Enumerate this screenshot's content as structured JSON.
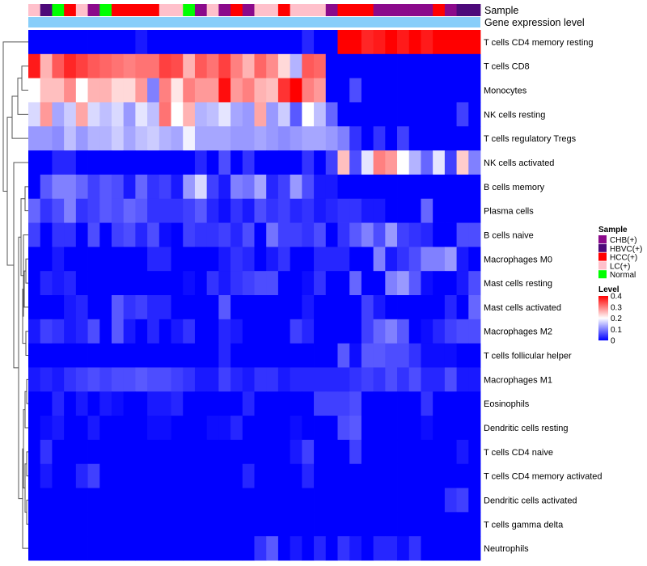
{
  "chart_data": {
    "type": "heatmap",
    "title": "",
    "annotation_tracks": [
      "Sample",
      "Gene expression level"
    ],
    "rows": [
      "T cells CD4 memory resting",
      "T cells CD8",
      "Monocytes",
      "NK cells resting",
      "T cells regulatory  Tregs",
      "NK cells activated",
      "B cells memory",
      "Plasma cells",
      "B cells naive",
      "Macrophages M0",
      "Mast cells resting",
      "Mast cells activated",
      "Macrophages M2",
      "T cells follicular helper",
      "Macrophages M1",
      "Eosinophils",
      "Dendritic cells resting",
      "T cells CD4 naive",
      "T cells CD4 memory activated",
      "Dendritic cells activated",
      "T cells gamma delta",
      "Neutrophils"
    ],
    "samples": [
      "LC(+)",
      "HBVC(+)",
      "Normal",
      "HCC(+)",
      "LC(+)",
      "CHB(+)",
      "Normal",
      "HCC(+)",
      "HCC(+)",
      "HCC(+)",
      "HCC(+)",
      "LC(+)",
      "LC(+)",
      "Normal",
      "CHB(+)",
      "LC(+)",
      "CHB(+)",
      "HCC(+)",
      "CHB(+)",
      "LC(+)",
      "LC(+)",
      "HCC(+)",
      "LC(+)",
      "LC(+)",
      "LC(+)",
      "CHB(+)",
      "HCC(+)",
      "HCC(+)",
      "HCC(+)",
      "CHB(+)",
      "CHB(+)",
      "CHB(+)",
      "CHB(+)",
      "CHB(+)",
      "HCC(+)",
      "CHB(+)",
      "HBVC(+)",
      "HBVC(+)"
    ],
    "values": [
      [
        0,
        0,
        0,
        0,
        0,
        0,
        0,
        0,
        0,
        0.02,
        0,
        0,
        0,
        0,
        0,
        0,
        0,
        0,
        0,
        0,
        0,
        0,
        0,
        0.03,
        0,
        0,
        0.4,
        0.4,
        0.37,
        0.38,
        0.4,
        0.38,
        0.4,
        0.38,
        0.4,
        0.4,
        0.4,
        0.4
      ],
      [
        0.38,
        0.26,
        0.33,
        0.37,
        0.35,
        0.33,
        0.32,
        0.31,
        0.3,
        0.31,
        0.31,
        0.35,
        0.34,
        0.26,
        0.33,
        0.31,
        0.35,
        0.3,
        0.26,
        0.32,
        0.29,
        0.23,
        0.14,
        0.33,
        0.32,
        0,
        0,
        0,
        0,
        0,
        0,
        0,
        0,
        0,
        0,
        0,
        0,
        0
      ],
      [
        0.2,
        0.25,
        0.25,
        0.29,
        0.2,
        0.26,
        0.26,
        0.23,
        0.23,
        0.28,
        0.1,
        0.3,
        0.22,
        0.3,
        0.28,
        0.28,
        0.39,
        0.28,
        0.3,
        0.26,
        0.25,
        0.36,
        0.4,
        0.3,
        0.28,
        0,
        0,
        0.06,
        0,
        0,
        0,
        0,
        0,
        0,
        0,
        0,
        0,
        0
      ],
      [
        0.17,
        0.28,
        0.13,
        0.16,
        0.27,
        0.17,
        0.15,
        0.17,
        0.12,
        0.18,
        0.15,
        0.31,
        0.2,
        0.26,
        0.14,
        0.15,
        0.18,
        0.13,
        0.12,
        0.27,
        0.12,
        0.16,
        0.07,
        0.2,
        0.15,
        0.08,
        0,
        0,
        0,
        0,
        0,
        0,
        0,
        0,
        0,
        0,
        0.05,
        0
      ],
      [
        0.12,
        0.12,
        0.11,
        0.15,
        0.12,
        0.14,
        0.14,
        0.16,
        0.13,
        0.15,
        0.16,
        0.14,
        0.13,
        0.19,
        0.13,
        0.13,
        0.13,
        0.12,
        0.12,
        0.13,
        0.12,
        0.11,
        0.12,
        0.13,
        0.13,
        0.12,
        0.1,
        0.04,
        0,
        0.04,
        0,
        0.05,
        0,
        0,
        0,
        0,
        0,
        0
      ],
      [
        0,
        0,
        0.03,
        0.03,
        0,
        0,
        0,
        0,
        0,
        0,
        0,
        0,
        0,
        0,
        0.03,
        0,
        0.06,
        0,
        0.04,
        0,
        0,
        0,
        0,
        0.04,
        0,
        0.05,
        0.25,
        0.06,
        0.18,
        0.3,
        0.28,
        0.2,
        0.14,
        0.08,
        0.18,
        0.05,
        0.24,
        0.1
      ],
      [
        0,
        0.07,
        0.1,
        0.1,
        0.08,
        0.05,
        0.07,
        0.06,
        0.02,
        0.08,
        0.04,
        0.05,
        0.02,
        0.12,
        0.17,
        0.05,
        0.02,
        0.1,
        0.09,
        0.13,
        0.03,
        0.05,
        0.12,
        0.06,
        0.02,
        0.02,
        0,
        0,
        0,
        0,
        0,
        0,
        0,
        0,
        0,
        0,
        0,
        0
      ],
      [
        0.08,
        0.04,
        0.06,
        0.1,
        0.04,
        0.05,
        0.07,
        0.06,
        0.08,
        0.07,
        0.04,
        0.04,
        0.04,
        0.05,
        0.07,
        0.03,
        0.01,
        0.04,
        0.02,
        0.06,
        0.04,
        0.05,
        0.03,
        0.04,
        0.02,
        0.03,
        0.04,
        0.04,
        0.02,
        0.02,
        0,
        0,
        0,
        0.08,
        0,
        0,
        0,
        0
      ],
      [
        0.05,
        0,
        0.04,
        0.04,
        0,
        0.06,
        0,
        0.05,
        0.06,
        0.03,
        0.06,
        0.01,
        0,
        0.05,
        0.04,
        0.04,
        0.05,
        0.03,
        0.06,
        0,
        0.09,
        0.05,
        0.05,
        0.04,
        0.06,
        0,
        0.04,
        0.07,
        0.1,
        0.06,
        0.12,
        0.05,
        0.04,
        0.03,
        0,
        0,
        0.06,
        0.06
      ],
      [
        0,
        0,
        0.02,
        0,
        0,
        0,
        0,
        0,
        0,
        0,
        0.03,
        0.03,
        0,
        0,
        0,
        0,
        0.02,
        0.04,
        0.03,
        0,
        0.02,
        0.04,
        0,
        0,
        0.03,
        0.03,
        0.03,
        0,
        0,
        0.1,
        0.02,
        0.04,
        0.06,
        0.1,
        0.1,
        0.12,
        0.02,
        0
      ],
      [
        0,
        0.03,
        0.02,
        0.03,
        0,
        0,
        0,
        0,
        0,
        0,
        0,
        0,
        0,
        0.01,
        0,
        0.04,
        0.02,
        0.04,
        0.05,
        0.06,
        0.06,
        0,
        0,
        0.01,
        0.04,
        0,
        0,
        0.08,
        0,
        0,
        0.1,
        0.12,
        0.07,
        0.01,
        0,
        0,
        0.02,
        0.06
      ],
      [
        0,
        0,
        0,
        0.02,
        0.03,
        0,
        0,
        0.07,
        0.04,
        0.05,
        0.03,
        0.03,
        0,
        0,
        0,
        0,
        0.07,
        0,
        0,
        0,
        0,
        0,
        0,
        0.02,
        0,
        0,
        0,
        0,
        0.05,
        0.02,
        0,
        0,
        0,
        0,
        0,
        0.03,
        0,
        0.08
      ],
      [
        0.02,
        0.05,
        0.04,
        0.02,
        0.03,
        0.06,
        0,
        0.07,
        0.02,
        0,
        0.03,
        0,
        0.02,
        0.04,
        0,
        0,
        0.03,
        0.02,
        0,
        0,
        0,
        0,
        0.05,
        0.03,
        0,
        0,
        0,
        0,
        0.05,
        0.08,
        0.1,
        0.07,
        0,
        0.01,
        0.03,
        0.05,
        0.06,
        0.06
      ],
      [
        0,
        0,
        0,
        0,
        0,
        0,
        0,
        0,
        0,
        0,
        0,
        0,
        0,
        0,
        0,
        0,
        0.03,
        0,
        0,
        0,
        0,
        0,
        0,
        0,
        0,
        0,
        0.07,
        0.01,
        0.07,
        0.07,
        0.06,
        0.06,
        0.04,
        0.01,
        0.01,
        0.01,
        0,
        0
      ],
      [
        0.02,
        0.03,
        0.02,
        0.04,
        0.05,
        0.06,
        0.05,
        0.06,
        0.06,
        0.07,
        0.06,
        0.06,
        0.05,
        0.04,
        0.02,
        0.02,
        0.05,
        0.03,
        0.02,
        0.04,
        0.04,
        0.02,
        0.03,
        0.03,
        0.03,
        0.03,
        0.03,
        0.04,
        0.05,
        0.04,
        0.06,
        0.04,
        0.06,
        0.03,
        0.03,
        0.06,
        0.02,
        0.02
      ],
      [
        0,
        0,
        0.03,
        0,
        0.02,
        0,
        0.02,
        0.01,
        0,
        0,
        0.02,
        0.02,
        0.03,
        0,
        0,
        0,
        0,
        0,
        0.03,
        0,
        0,
        0,
        0,
        0,
        0.05,
        0.05,
        0.05,
        0.06,
        0,
        0,
        0,
        0,
        0,
        0.04,
        0,
        0,
        0,
        0
      ],
      [
        0,
        0.01,
        0.02,
        0,
        0,
        0.02,
        0,
        0,
        0,
        0,
        0.01,
        0.01,
        0,
        0,
        0,
        0.01,
        0.01,
        0.03,
        0,
        0,
        0,
        0,
        0.01,
        0,
        0,
        0,
        0.06,
        0.07,
        0,
        0,
        0,
        0,
        0,
        0.01,
        0,
        0,
        0,
        0
      ],
      [
        0,
        0.04,
        0,
        0,
        0,
        0,
        0,
        0,
        0,
        0,
        0,
        0,
        0,
        0,
        0,
        0,
        0,
        0,
        0,
        0,
        0,
        0,
        0.02,
        0.05,
        0,
        0,
        0,
        0.05,
        0,
        0,
        0,
        0,
        0,
        0,
        0,
        0,
        0.02,
        0
      ],
      [
        0,
        0.02,
        0,
        0,
        0.03,
        0.05,
        0,
        0,
        0,
        0,
        0,
        0,
        0,
        0,
        0,
        0,
        0,
        0,
        0.03,
        0,
        0,
        0,
        0,
        0.03,
        0,
        0,
        0,
        0,
        0,
        0,
        0,
        0,
        0,
        0,
        0,
        0,
        0,
        0
      ],
      [
        0,
        0,
        0,
        0,
        0,
        0,
        0,
        0,
        0,
        0,
        0,
        0,
        0,
        0,
        0,
        0,
        0,
        0,
        0,
        0,
        0,
        0,
        0,
        0,
        0,
        0,
        0,
        0,
        0,
        0,
        0,
        0,
        0,
        0,
        0,
        0.04,
        0.05,
        0
      ],
      [
        0,
        0,
        0,
        0,
        0,
        0,
        0,
        0,
        0,
        0,
        0,
        0,
        0,
        0,
        0,
        0,
        0,
        0,
        0,
        0,
        0,
        0,
        0,
        0,
        0,
        0,
        0,
        0,
        0,
        0,
        0,
        0,
        0,
        0,
        0,
        0,
        0,
        0
      ],
      [
        0,
        0,
        0,
        0,
        0,
        0,
        0,
        0,
        0,
        0,
        0,
        0,
        0,
        0,
        0,
        0,
        0,
        0,
        0,
        0.04,
        0.07,
        0,
        0.02,
        0,
        0.03,
        0,
        0.04,
        0.02,
        0,
        0.03,
        0.03,
        0.01,
        0.04,
        0,
        0,
        0,
        0,
        0
      ]
    ],
    "color_scale": {
      "min": 0,
      "max": 0.4,
      "stops": [
        {
          "value": 0,
          "color": "#0000ff"
        },
        {
          "value": 0.2,
          "color": "#ffffff"
        },
        {
          "value": 0.4,
          "color": "#ff0000"
        }
      ]
    },
    "sample_colors": {
      "CHB(+)": "#8b0a8b",
      "HBVC(+)": "#4d0a7a",
      "HCC(+)": "#ff0000",
      "LC(+)": "#ffc0cb",
      "Normal": "#00ff00"
    },
    "gene_expression_level_color": "#87cefa",
    "legend": {
      "sample_title": "Sample",
      "sample_entries": [
        "CHB(+)",
        "HBVC(+)",
        "HCC(+)",
        "LC(+)",
        "Normal"
      ],
      "level_title": "Level",
      "level_ticks": [
        "0.4",
        "0.3",
        "0.2",
        "0.1",
        "0"
      ],
      "position": "right"
    }
  }
}
